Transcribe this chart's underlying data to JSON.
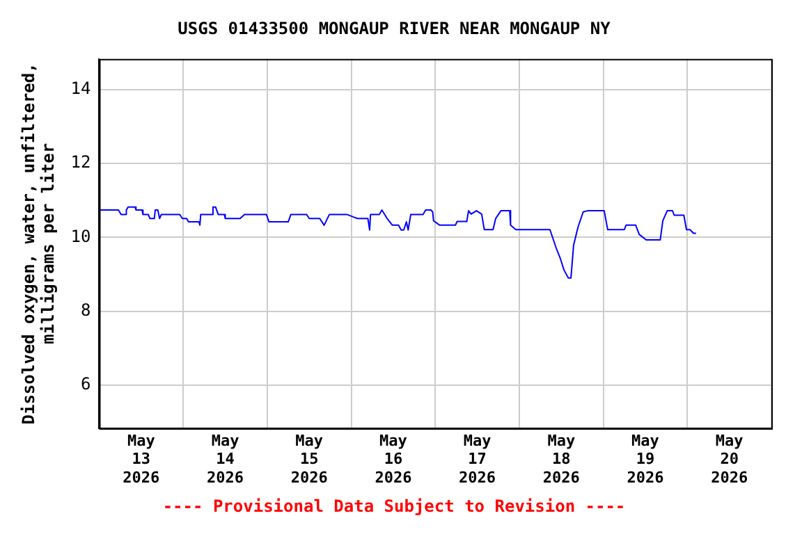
{
  "chart_data": {
    "type": "line",
    "title": "USGS 01433500 MONGAUP RIVER NEAR MONGAUP NY",
    "ylabel": "Dissolved oxygen, water, unfiltered,\nmilligrams per liter",
    "annotations": [
      "---- Provisional Data Subject to Revision ----"
    ],
    "xlim": [
      "2026-05-13T00:00",
      "2026-05-21T00:00"
    ],
    "xticks": [
      {
        "value": "2026-05-13T00:00",
        "label": null
      },
      {
        "value": "2026-05-13T12:00",
        "label": "May\n13\n2026"
      },
      {
        "value": "2026-05-14T00:00",
        "label": null
      },
      {
        "value": "2026-05-14T12:00",
        "label": "May\n14\n2026"
      },
      {
        "value": "2026-05-15T00:00",
        "label": null
      },
      {
        "value": "2026-05-15T12:00",
        "label": "May\n15\n2026"
      },
      {
        "value": "2026-05-16T00:00",
        "label": null
      },
      {
        "value": "2026-05-16T12:00",
        "label": "May\n16\n2026"
      },
      {
        "value": "2026-05-17T00:00",
        "label": null
      },
      {
        "value": "2026-05-17T12:00",
        "label": "May\n17\n2026"
      },
      {
        "value": "2026-05-18T00:00",
        "label": null
      },
      {
        "value": "2026-05-18T12:00",
        "label": "May\n18\n2026"
      },
      {
        "value": "2026-05-19T00:00",
        "label": null
      },
      {
        "value": "2026-05-19T12:00",
        "label": "May\n19\n2026"
      },
      {
        "value": "2026-05-20T00:00",
        "label": null
      },
      {
        "value": "2026-05-20T12:00",
        "label": "May\n20\n2026"
      },
      {
        "value": "2026-05-21T00:00",
        "label": null
      }
    ],
    "ylim": [
      4.83,
      14.83
    ],
    "yticks": [
      6,
      8,
      10,
      12,
      14
    ],
    "grid": true,
    "legend": false,
    "x": [
      "2026-05-13T00:00",
      "2026-05-13T05:30",
      "2026-05-13T06:15",
      "2026-05-13T07:30",
      "2026-05-13T07:45",
      "2026-05-13T08:15",
      "2026-05-13T10:15",
      "2026-05-13T10:30",
      "2026-05-13T12:15",
      "2026-05-13T12:30",
      "2026-05-13T14:00",
      "2026-05-13T14:30",
      "2026-05-13T15:45",
      "2026-05-13T16:00",
      "2026-05-13T16:45",
      "2026-05-13T17:15",
      "2026-05-13T17:45",
      "2026-05-13T23:00",
      "2026-05-13T23:45",
      "2026-05-14T01:00",
      "2026-05-14T01:30",
      "2026-05-14T04:30",
      "2026-05-14T04:45",
      "2026-05-14T05:00",
      "2026-05-14T08:15",
      "2026-05-14T08:30",
      "2026-05-14T09:15",
      "2026-05-14T10:00",
      "2026-05-14T11:45",
      "2026-05-14T12:00",
      "2026-05-14T16:15",
      "2026-05-14T17:30",
      "2026-05-14T23:45",
      "2026-05-15T00:30",
      "2026-05-15T06:00",
      "2026-05-15T06:45",
      "2026-05-15T11:15",
      "2026-05-15T12:00",
      "2026-05-15T15:00",
      "2026-05-15T16:15",
      "2026-05-15T17:45",
      "2026-05-15T22:45",
      "2026-05-16T01:45",
      "2026-05-16T04:45",
      "2026-05-16T05:15",
      "2026-05-16T05:30",
      "2026-05-16T08:00",
      "2026-05-16T08:45",
      "2026-05-16T10:15",
      "2026-05-16T11:45",
      "2026-05-16T13:30",
      "2026-05-16T14:15",
      "2026-05-16T15:00",
      "2026-05-16T15:45",
      "2026-05-16T16:15",
      "2026-05-16T17:00",
      "2026-05-16T20:30",
      "2026-05-16T21:15",
      "2026-05-16T22:45",
      "2026-05-16T23:15",
      "2026-05-16T23:30",
      "2026-05-17T01:15",
      "2026-05-17T05:45",
      "2026-05-17T06:15",
      "2026-05-17T09:00",
      "2026-05-17T09:30",
      "2026-05-17T10:15",
      "2026-05-17T11:45",
      "2026-05-17T13:15",
      "2026-05-17T14:00",
      "2026-05-17T16:30",
      "2026-05-17T17:15",
      "2026-05-17T18:45",
      "2026-05-17T21:15",
      "2026-05-17T21:30",
      "2026-05-17T23:00",
      "2026-05-18T08:45",
      "2026-05-18T10:30",
      "2026-05-18T11:45",
      "2026-05-18T12:45",
      "2026-05-18T14:00",
      "2026-05-18T14:45",
      "2026-05-18T15:30",
      "2026-05-18T16:45",
      "2026-05-18T18:15",
      "2026-05-18T19:30",
      "2026-05-19T00:15",
      "2026-05-19T01:15",
      "2026-05-19T06:00",
      "2026-05-19T06:30",
      "2026-05-19T09:15",
      "2026-05-19T10:15",
      "2026-05-19T12:15",
      "2026-05-19T16:15",
      "2026-05-19T17:00",
      "2026-05-19T18:15",
      "2026-05-19T19:45",
      "2026-05-19T20:15",
      "2026-05-19T23:00",
      "2026-05-19T23:45",
      "2026-05-20T00:45",
      "2026-05-20T01:45",
      "2026-05-20T02:30"
    ],
    "series": [
      {
        "color": "#0000ff",
        "values": [
          10.74,
          10.74,
          10.62,
          10.62,
          10.74,
          10.82,
          10.82,
          10.74,
          10.74,
          10.62,
          10.62,
          10.51,
          10.51,
          10.74,
          10.74,
          10.51,
          10.62,
          10.62,
          10.51,
          10.51,
          10.42,
          10.42,
          10.33,
          10.62,
          10.62,
          10.82,
          10.82,
          10.62,
          10.62,
          10.51,
          10.51,
          10.62,
          10.62,
          10.42,
          10.42,
          10.62,
          10.62,
          10.51,
          10.51,
          10.33,
          10.62,
          10.62,
          10.51,
          10.51,
          10.2,
          10.62,
          10.62,
          10.74,
          10.51,
          10.33,
          10.33,
          10.2,
          10.2,
          10.42,
          10.2,
          10.62,
          10.62,
          10.74,
          10.74,
          10.69,
          10.45,
          10.33,
          10.33,
          10.43,
          10.43,
          10.72,
          10.63,
          10.72,
          10.63,
          10.21,
          10.21,
          10.51,
          10.72,
          10.72,
          10.33,
          10.21,
          10.21,
          9.72,
          9.42,
          9.12,
          8.9,
          8.9,
          9.78,
          10.27,
          10.69,
          10.72,
          10.72,
          10.21,
          10.21,
          10.33,
          10.33,
          10.08,
          9.93,
          9.93,
          10.45,
          10.72,
          10.72,
          10.6,
          10.6,
          10.21,
          10.21,
          10.11,
          10.11
        ]
      }
    ]
  }
}
